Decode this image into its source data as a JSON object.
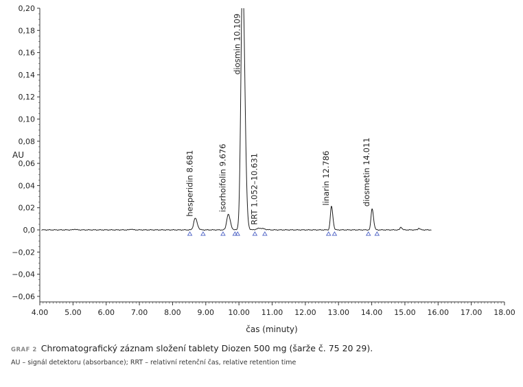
{
  "chart_data": {
    "type": "line",
    "title": "",
    "xlabel": "čas (minuty)",
    "ylabel": "AU",
    "xlim": [
      4.0,
      18.0
    ],
    "ylim": [
      -0.065,
      0.2
    ],
    "x_ticks": [
      "4.00",
      "5.00",
      "6.00",
      "7.00",
      "8.00",
      "9.00",
      "10.00",
      "11.00",
      "12.00",
      "13.00",
      "14.00",
      "15.00",
      "16.00",
      "17.00",
      "18.00"
    ],
    "y_ticks": [
      "0,20",
      "0,18",
      "0,16",
      "0,14",
      "0,12",
      "0,10",
      "0,08",
      "0,06",
      "0,04",
      "0,02",
      "0,0",
      "−0,02",
      "−0,04",
      "−0,06"
    ],
    "grid": false,
    "baseline": 0.0,
    "peaks": [
      {
        "x": 5.05,
        "height": 0.0006,
        "width": 0.03
      },
      {
        "x": 6.75,
        "height": 0.0007,
        "width": 0.03
      },
      {
        "x": 8.681,
        "height": 0.0105,
        "width": 0.045,
        "label": "hesperidin 8.681"
      },
      {
        "x": 9.676,
        "height": 0.014,
        "width": 0.045,
        "label": "isorhoifolin 9.676"
      },
      {
        "x": 10.109,
        "height": 0.23,
        "width": 0.05,
        "label": "diosmin 10.109"
      },
      {
        "x": 10.631,
        "height": 0.0015,
        "width": 0.09,
        "label": "RRT 1.052–10.631"
      },
      {
        "x": 12.786,
        "height": 0.021,
        "width": 0.032,
        "label": "linarin 12.786"
      },
      {
        "x": 14.011,
        "height": 0.019,
        "width": 0.032,
        "label": "diosmetin 14.011"
      },
      {
        "x": 14.88,
        "height": 0.0025,
        "width": 0.025
      },
      {
        "x": 15.42,
        "height": 0.0015,
        "width": 0.025
      }
    ],
    "integration_markers": [
      8.52,
      8.92,
      9.52,
      9.88,
      9.96,
      10.48,
      10.78,
      12.7,
      12.88,
      13.9,
      14.16
    ]
  },
  "caption": {
    "tag": "GRAF 2",
    "title": "Chromatografický záznam složení tablety Diozen 500 mg (šarže č. 75 20 29).",
    "legend": "AU – signál detektoru (absorbance); RRT – relativní retenční čas, relative retention time"
  },
  "colors": {
    "trace": "#1a1a1a",
    "axis": "#333333",
    "marker": "#4a5fc4"
  }
}
